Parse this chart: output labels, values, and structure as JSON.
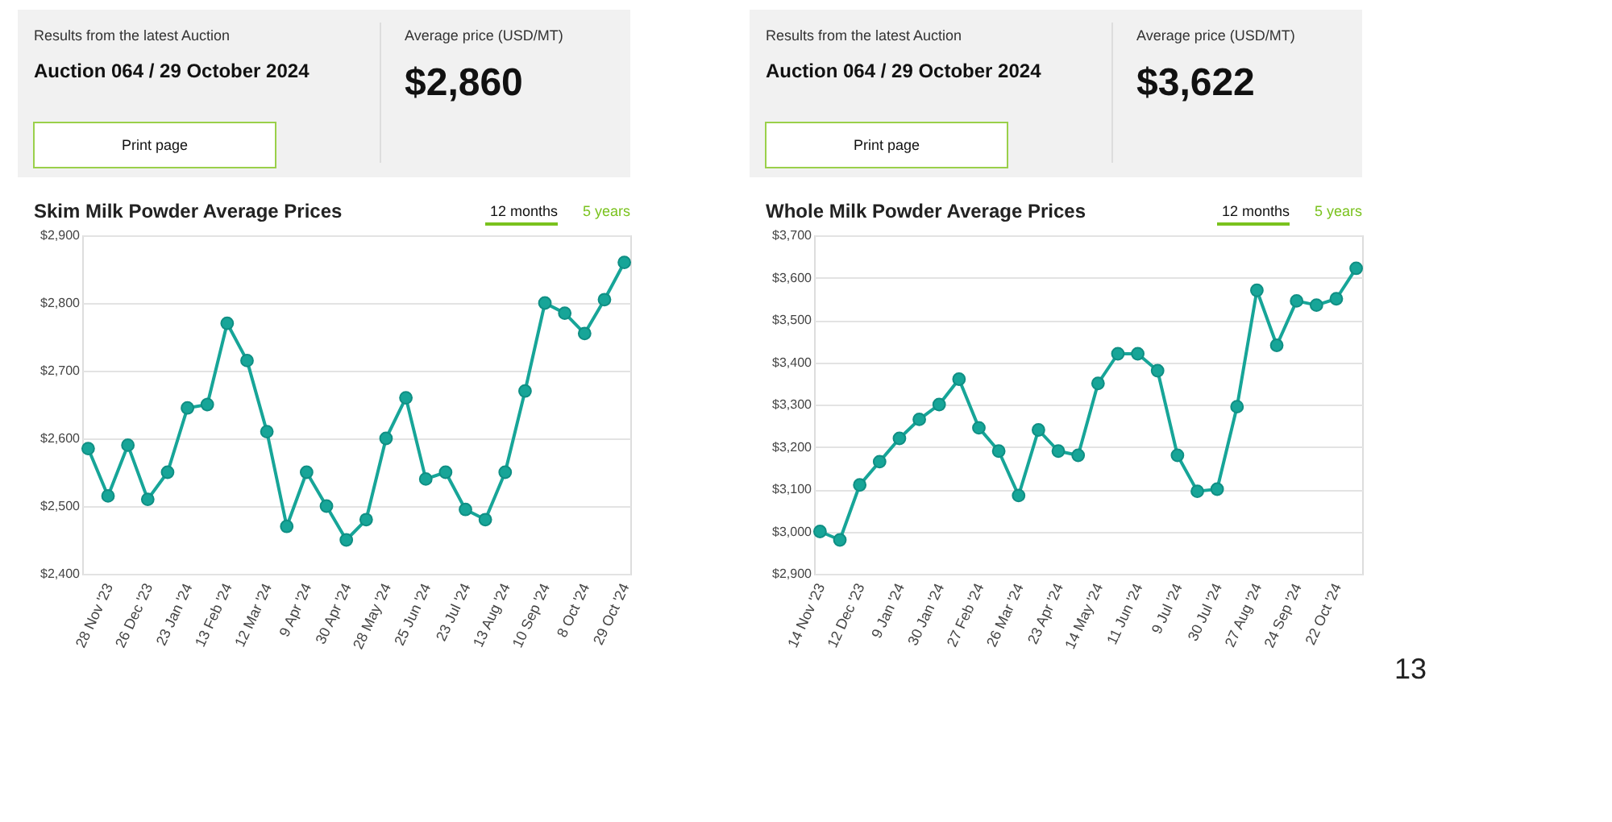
{
  "chart_data": [
    {
      "type": "line",
      "title": "Skim Milk Powder Average Prices",
      "annotations": [
        "Results from the latest Auction",
        "Auction 064 / 29 October 2024",
        "Average price (USD/MT)",
        "$2,860",
        "Print page",
        "12 months",
        "5 years"
      ],
      "categories": [
        null,
        "28 Nov '23",
        null,
        "26 Dec '23",
        null,
        "23 Jan '24",
        null,
        "13 Feb '24",
        null,
        "12 Mar '24",
        null,
        "9 Apr '24",
        null,
        "30 Apr '24",
        null,
        "28 May '24",
        null,
        "25 Jun '24",
        null,
        "23 Jul '24",
        null,
        "13 Aug '24",
        null,
        "10 Sep '24",
        null,
        "8 Oct '24",
        null,
        "29 Oct '24"
      ],
      "series": [
        {
          "color": "#17a598",
          "values": [
            2585,
            2515,
            2590,
            2510,
            2550,
            2645,
            2650,
            2770,
            2715,
            2610,
            2470,
            2550,
            2500,
            2450,
            2480,
            2600,
            2660,
            2540,
            2550,
            2495,
            2480,
            2550,
            2670,
            2800,
            2785,
            2755,
            2805,
            2860
          ]
        }
      ],
      "ylim": [
        2400,
        2900
      ],
      "yticks": [
        {
          "value": 2400,
          "label": "$2,400"
        },
        {
          "value": 2500,
          "label": "$2,500"
        },
        {
          "value": 2600,
          "label": "$2,600"
        },
        {
          "value": 2700,
          "label": "$2,700"
        },
        {
          "value": 2800,
          "label": "$2,800"
        },
        {
          "value": 2900,
          "label": "$2,900"
        }
      ],
      "grid": "y",
      "marker": "circle",
      "line_style": "solid"
    },
    {
      "type": "line",
      "title": "Whole Milk Powder Average Prices",
      "annotations": [
        "Results from the latest Auction",
        "Auction 064 / 29 October 2024",
        "Average price (USD/MT)",
        "$3,622",
        "Print page",
        "12 months",
        "5 years",
        "13"
      ],
      "categories": [
        "14 Nov '23",
        null,
        "12 Dec '23",
        null,
        "9 Jan '24",
        null,
        "30 Jan '24",
        null,
        "27 Feb '24",
        null,
        "26 Mar '24",
        null,
        "23 Apr '24",
        null,
        "14 May '24",
        null,
        "11 Jun '24",
        null,
        "9 Jul '24",
        null,
        "30 Jul '24",
        null,
        "27 Aug '24",
        null,
        "24 Sep '24",
        null,
        "22 Oct '24",
        null
      ],
      "series": [
        {
          "color": "#17a598",
          "values": [
            3000,
            2980,
            3110,
            3165,
            3220,
            3265,
            3300,
            3360,
            3245,
            3190,
            3085,
            3240,
            3190,
            3180,
            3350,
            3420,
            3420,
            3380,
            3180,
            3095,
            3100,
            3295,
            3570,
            3440,
            3545,
            3535,
            3550,
            3622
          ]
        }
      ],
      "ylim": [
        2900,
        3700
      ],
      "yticks": [
        {
          "value": 2900,
          "label": "$2,900"
        },
        {
          "value": 3000,
          "label": "$3,000"
        },
        {
          "value": 3100,
          "label": "$3,100"
        },
        {
          "value": 3200,
          "label": "$3,200"
        },
        {
          "value": 3300,
          "label": "$3,300"
        },
        {
          "value": 3400,
          "label": "$3,400"
        },
        {
          "value": 3500,
          "label": "$3,500"
        },
        {
          "value": 3600,
          "label": "$3,600"
        },
        {
          "value": 3700,
          "label": "$3,700"
        }
      ],
      "grid": "y",
      "marker": "circle",
      "line_style": "solid"
    }
  ]
}
